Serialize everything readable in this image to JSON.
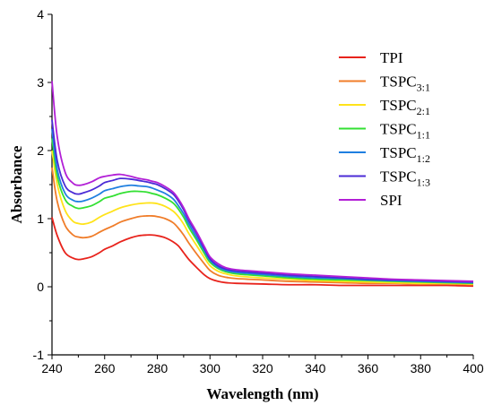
{
  "chart_data": {
    "type": "line",
    "xlabel": "Wavelength (nm)",
    "ylabel": "Absorbance",
    "xlim": [
      240,
      400
    ],
    "ylim": [
      -1,
      4
    ],
    "x_ticks": [
      "240",
      "260",
      "280",
      "300",
      "320",
      "340",
      "360",
      "380",
      "400"
    ],
    "y_ticks": [
      "-1",
      "0",
      "1",
      "2",
      "3",
      "4"
    ],
    "grid": false,
    "legend_position": "top-right",
    "x": [
      240,
      242,
      245,
      248,
      250,
      252,
      255,
      258,
      260,
      263,
      266,
      270,
      273,
      276,
      278,
      280,
      283,
      286,
      288,
      290,
      292,
      295,
      298,
      300,
      303,
      306,
      310,
      320,
      330,
      340,
      350,
      360,
      370,
      380,
      390,
      400
    ],
    "series": [
      {
        "name": "TPI",
        "label_main": "TPI",
        "label_sub": "",
        "color": "#e8231c",
        "values": [
          1.02,
          0.75,
          0.5,
          0.42,
          0.4,
          0.41,
          0.44,
          0.5,
          0.55,
          0.6,
          0.66,
          0.72,
          0.75,
          0.76,
          0.76,
          0.75,
          0.72,
          0.66,
          0.6,
          0.5,
          0.4,
          0.28,
          0.17,
          0.12,
          0.08,
          0.06,
          0.05,
          0.04,
          0.03,
          0.03,
          0.02,
          0.02,
          0.02,
          0.02,
          0.02,
          0.01
        ]
      },
      {
        "name": "TSPC3:1",
        "label_main": "TSPC",
        "label_sub": "3:1",
        "color": "#f07d2a",
        "values": [
          1.75,
          1.25,
          0.9,
          0.76,
          0.73,
          0.72,
          0.74,
          0.8,
          0.84,
          0.89,
          0.95,
          1.0,
          1.03,
          1.04,
          1.04,
          1.03,
          1.0,
          0.94,
          0.86,
          0.76,
          0.64,
          0.48,
          0.33,
          0.24,
          0.17,
          0.14,
          0.12,
          0.1,
          0.08,
          0.07,
          0.06,
          0.05,
          0.05,
          0.04,
          0.04,
          0.03
        ]
      },
      {
        "name": "TSPC2:1",
        "label_main": "TSPC",
        "label_sub": "2:1",
        "color": "#ffe31a",
        "values": [
          2.0,
          1.5,
          1.12,
          0.96,
          0.93,
          0.92,
          0.95,
          1.02,
          1.06,
          1.11,
          1.16,
          1.2,
          1.22,
          1.23,
          1.23,
          1.22,
          1.18,
          1.11,
          1.03,
          0.92,
          0.78,
          0.6,
          0.42,
          0.31,
          0.23,
          0.19,
          0.16,
          0.13,
          0.11,
          0.09,
          0.08,
          0.07,
          0.06,
          0.05,
          0.05,
          0.04
        ]
      },
      {
        "name": "TSPC1:1",
        "label_main": "TSPC",
        "label_sub": "1:1",
        "color": "#33e033",
        "values": [
          2.18,
          1.62,
          1.28,
          1.18,
          1.15,
          1.16,
          1.19,
          1.25,
          1.3,
          1.33,
          1.37,
          1.4,
          1.4,
          1.39,
          1.37,
          1.35,
          1.3,
          1.23,
          1.14,
          1.02,
          0.87,
          0.68,
          0.48,
          0.36,
          0.27,
          0.22,
          0.19,
          0.16,
          0.13,
          0.11,
          0.1,
          0.09,
          0.08,
          0.07,
          0.06,
          0.05
        ]
      },
      {
        "name": "TSPC1:2",
        "label_main": "TSPC",
        "label_sub": "1:2",
        "color": "#1f7fe0",
        "values": [
          2.32,
          1.72,
          1.37,
          1.27,
          1.25,
          1.26,
          1.3,
          1.36,
          1.41,
          1.44,
          1.47,
          1.49,
          1.48,
          1.47,
          1.45,
          1.42,
          1.37,
          1.29,
          1.19,
          1.07,
          0.92,
          0.72,
          0.52,
          0.39,
          0.29,
          0.24,
          0.21,
          0.18,
          0.15,
          0.13,
          0.12,
          0.1,
          0.09,
          0.08,
          0.07,
          0.06
        ]
      },
      {
        "name": "TSPC1:3",
        "label_main": "TSPC",
        "label_sub": "1:3",
        "color": "#4b2bd6",
        "values": [
          2.45,
          1.85,
          1.48,
          1.38,
          1.36,
          1.38,
          1.42,
          1.48,
          1.53,
          1.56,
          1.59,
          1.58,
          1.56,
          1.54,
          1.52,
          1.5,
          1.44,
          1.36,
          1.26,
          1.13,
          0.97,
          0.77,
          0.55,
          0.41,
          0.31,
          0.26,
          0.23,
          0.2,
          0.17,
          0.15,
          0.13,
          0.11,
          0.1,
          0.09,
          0.08,
          0.07
        ]
      },
      {
        "name": "SPI",
        "label_main": "SPI",
        "label_sub": "",
        "color": "#b21fd6",
        "values": [
          3.02,
          2.2,
          1.68,
          1.52,
          1.49,
          1.5,
          1.54,
          1.6,
          1.62,
          1.64,
          1.65,
          1.62,
          1.59,
          1.57,
          1.55,
          1.53,
          1.47,
          1.39,
          1.29,
          1.16,
          1.0,
          0.8,
          0.58,
          0.44,
          0.34,
          0.28,
          0.25,
          0.22,
          0.19,
          0.17,
          0.15,
          0.13,
          0.11,
          0.1,
          0.09,
          0.08
        ]
      }
    ]
  }
}
